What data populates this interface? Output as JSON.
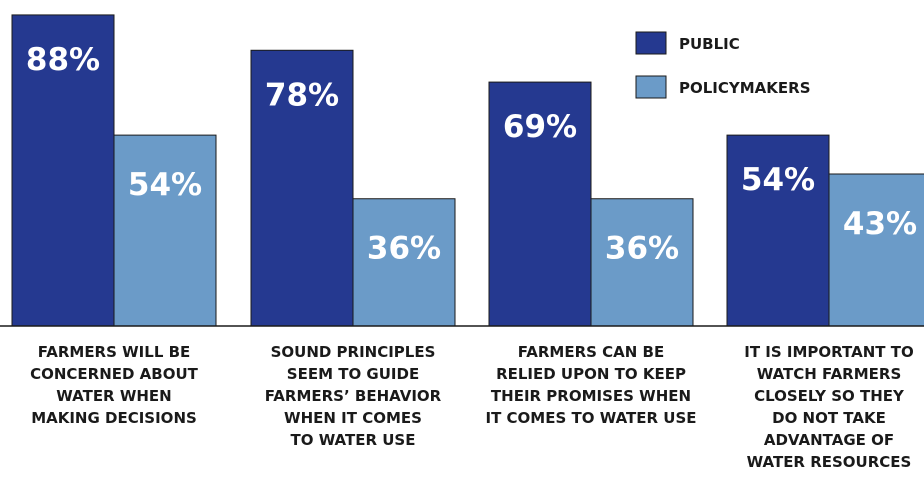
{
  "chart_data": {
    "type": "bar",
    "categories": [
      [
        "FARMERS WILL BE",
        "CONCERNED ABOUT",
        "WATER WHEN",
        "MAKING DECISIONS"
      ],
      [
        "SOUND PRINCIPLES",
        "SEEM TO GUIDE",
        "FARMERS’ BEHAVIOR",
        "WHEN IT COMES",
        "TO WATER USE"
      ],
      [
        "FARMERS CAN BE",
        "RELIED UPON TO KEEP",
        "THEIR PROMISES WHEN",
        "IT COMES TO WATER USE"
      ],
      [
        "IT IS IMPORTANT TO",
        "WATCH FARMERS",
        "CLOSELY SO THEY",
        "DO NOT TAKE",
        "ADVANTAGE OF",
        "WATER RESOURCES"
      ]
    ],
    "series": [
      {
        "name": "PUBLIC",
        "values": [
          88,
          78,
          69,
          54
        ],
        "labels": [
          "88%",
          "78%",
          "69%",
          "54%"
        ],
        "color": "#253990"
      },
      {
        "name": "POLICYMAKERS",
        "values": [
          54,
          36,
          36,
          43
        ],
        "labels": [
          "54%",
          "36%",
          "36%",
          "43%"
        ],
        "color": "#6b9bc8"
      }
    ],
    "ylim": [
      0,
      100
    ],
    "legend": "top-right",
    "grid": false,
    "baseline_color": "#1a1a1a"
  }
}
